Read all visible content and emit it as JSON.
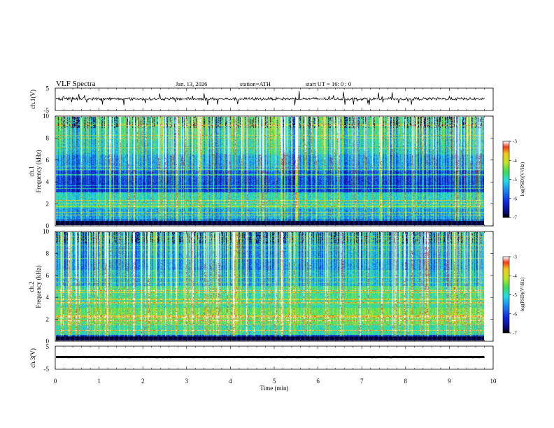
{
  "header": {
    "title": "VLF  Spectra",
    "date": "Jan. 13, 2026",
    "station": "station=ATH",
    "start_ut": "start  UT  =    16: 0  : 0"
  },
  "colors": {
    "spec_low": "#0a1a8c",
    "spec_mid": "#21c8d8",
    "spec_high": "#e8d020",
    "trace": "#000000"
  },
  "chart_data": [
    {
      "type": "line",
      "name": "ch1-voltage",
      "ylabel": "ch.1(V)",
      "ylim": [
        -5,
        5
      ],
      "yticks": [
        "5",
        "-5"
      ],
      "xlim": [
        0,
        10
      ],
      "baseline": 0.2,
      "noise": 0.6
    },
    {
      "type": "heatmap",
      "name": "ch1-spectrogram",
      "ylabel_line1": "ch.1",
      "ylabel_line2": "Frequency (kHz)",
      "yticks": [
        "0",
        "2",
        "4",
        "6",
        "8",
        "10"
      ],
      "ylim": [
        0,
        10
      ],
      "xlim": [
        0,
        10
      ],
      "data_end_min": 9.8,
      "colorbar": {
        "label": "log(PSD)(V²/Hz)",
        "ticks": [
          "-3",
          "-4",
          "-5",
          "-6",
          "-7"
        ],
        "range": [
          -7,
          -3
        ]
      }
    },
    {
      "type": "heatmap",
      "name": "ch2-spectrogram",
      "ylabel_line1": "ch.2",
      "ylabel_line2": "Frequency (kHz)",
      "yticks": [
        "0",
        "2",
        "4",
        "6",
        "8",
        "10"
      ],
      "ylim": [
        0,
        10
      ],
      "xlim": [
        0,
        10
      ],
      "data_end_min": 9.8,
      "colorbar": {
        "label": "log(PSD)(V²/Hz)",
        "ticks": [
          "-3",
          "-4",
          "-5",
          "-6",
          "-7"
        ],
        "range": [
          -7,
          -3
        ]
      }
    },
    {
      "type": "line",
      "name": "ch3-voltage",
      "ylabel": "ch.3(V)",
      "ylim": [
        -5,
        5
      ],
      "yticks": [
        "5",
        "-5"
      ],
      "xlim": [
        0,
        10
      ],
      "baseline": 0.3,
      "noise": 0.05
    }
  ],
  "xaxis": {
    "label": "Time  (min)",
    "ticks": [
      "0",
      "1",
      "2",
      "3",
      "4",
      "5",
      "6",
      "7",
      "8",
      "9",
      "10"
    ]
  }
}
